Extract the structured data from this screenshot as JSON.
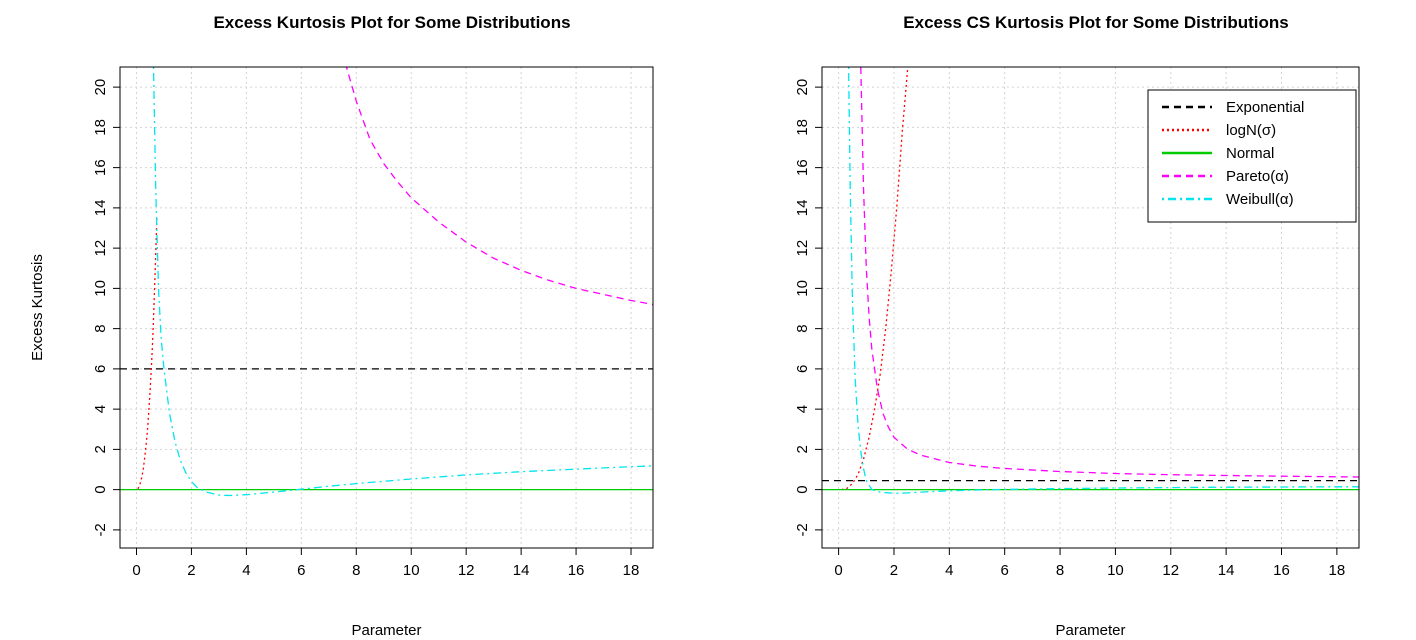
{
  "chart_data": [
    {
      "type": "line",
      "title": "Excess Kurtosis Plot for Some Distributions",
      "xlabel": "Parameter",
      "ylabel": "Excess Kurtosis",
      "xlim": [
        -0.6,
        18.8
      ],
      "ylim": [
        -2.9,
        21.0
      ],
      "xticks": [
        0,
        2,
        4,
        6,
        8,
        10,
        12,
        14,
        16,
        18
      ],
      "yticks": [
        -2,
        0,
        2,
        4,
        6,
        8,
        10,
        12,
        14,
        16,
        18,
        20
      ],
      "grid": true,
      "series": [
        {
          "name": "Exponential",
          "color": "#000000",
          "dash": "dashed",
          "x": [
            -0.6,
            18.8
          ],
          "y": [
            6,
            6
          ]
        },
        {
          "name": "logN(σ)",
          "color": "#ff0000",
          "dash": "dotted",
          "x": [
            0.05,
            0.1,
            0.15,
            0.2,
            0.25,
            0.3,
            0.35,
            0.4,
            0.45,
            0.5,
            0.55,
            0.6,
            0.65,
            0.7,
            0.72,
            0.74
          ],
          "y": [
            0.04,
            0.16,
            0.37,
            0.67,
            1.07,
            1.58,
            2.21,
            2.98,
            3.89,
            5.0,
            6.28,
            7.8,
            9.6,
            11.65,
            12.6,
            13.6
          ]
        },
        {
          "name": "Normal",
          "color": "#00cc00",
          "dash": "solid",
          "x": [
            -0.6,
            18.8
          ],
          "y": [
            0,
            0
          ]
        },
        {
          "name": "Pareto(α)",
          "color": "#ff00ff",
          "dash": "dashed",
          "x": [
            7.6,
            8.0,
            8.5,
            9.0,
            9.5,
            10.0,
            11.0,
            12.0,
            13.0,
            14.0,
            15.0,
            16.0,
            17.0,
            18.0,
            18.8
          ],
          "y": [
            21.2,
            19.3,
            17.4,
            16.2,
            15.3,
            14.5,
            13.3,
            12.3,
            11.5,
            10.9,
            10.4,
            10.0,
            9.7,
            9.4,
            9.2
          ]
        },
        {
          "name": "Weibull(α)",
          "color": "#00e5ee",
          "dash": "dotdash",
          "x": [
            0.62,
            0.7,
            0.8,
            0.9,
            1.0,
            1.2,
            1.4,
            1.6,
            1.8,
            2.0,
            2.2,
            2.5,
            3.0,
            3.4,
            4.0,
            5.0,
            6.0,
            7.0,
            8.0,
            10.0,
            12.0,
            14.0,
            16.0,
            18.0,
            18.8
          ],
          "y": [
            21.0,
            15.0,
            10.0,
            7.5,
            6.0,
            3.8,
            2.4,
            1.45,
            0.83,
            0.41,
            0.12,
            -0.11,
            -0.27,
            -0.29,
            -0.25,
            -0.12,
            0.02,
            0.17,
            0.3,
            0.53,
            0.73,
            0.89,
            1.02,
            1.14,
            1.18
          ]
        }
      ]
    },
    {
      "type": "line",
      "title": "Excess CS Kurtosis Plot for Some Distributions",
      "xlabel": "Parameter",
      "ylabel": "",
      "xlim": [
        -0.6,
        18.8
      ],
      "ylim": [
        -2.9,
        21.0
      ],
      "xticks": [
        0,
        2,
        4,
        6,
        8,
        10,
        12,
        14,
        16,
        18
      ],
      "yticks": [
        -2,
        0,
        2,
        4,
        6,
        8,
        10,
        12,
        14,
        16,
        18,
        20
      ],
      "grid": true,
      "legend_position": "top-right",
      "series": [
        {
          "name": "Exponential",
          "color": "#000000",
          "dash": "dashed",
          "x": [
            -0.6,
            18.8
          ],
          "y": [
            0.45,
            0.45
          ]
        },
        {
          "name": "logN(σ)",
          "color": "#ff0000",
          "dash": "dotted",
          "x": [
            0.1,
            0.3,
            0.5,
            0.7,
            0.9,
            1.1,
            1.3,
            1.5,
            1.7,
            1.9,
            2.1,
            2.3,
            2.5
          ],
          "y": [
            0.0,
            0.06,
            0.3,
            0.75,
            1.5,
            2.6,
            4.0,
            5.7,
            8.0,
            10.8,
            14.0,
            17.8,
            21.0
          ]
        },
        {
          "name": "Normal",
          "color": "#00cc00",
          "dash": "solid",
          "x": [
            -0.6,
            18.8
          ],
          "y": [
            0,
            0
          ]
        },
        {
          "name": "Pareto(α)",
          "color": "#ff00ff",
          "dash": "dashed",
          "x": [
            0.8,
            0.9,
            1.0,
            1.1,
            1.2,
            1.4,
            1.6,
            1.8,
            2.0,
            2.5,
            3.0,
            4.0,
            5.0,
            6.0,
            8.0,
            10.0,
            12.0,
            14.0,
            16.0,
            18.0,
            18.8
          ],
          "y": [
            21.0,
            15.0,
            11.0,
            8.6,
            7.0,
            5.0,
            3.8,
            3.1,
            2.6,
            2.0,
            1.7,
            1.35,
            1.17,
            1.05,
            0.9,
            0.8,
            0.74,
            0.7,
            0.67,
            0.64,
            0.63
          ]
        },
        {
          "name": "Weibull(α)",
          "color": "#00e5ee",
          "dash": "dotdash",
          "x": [
            0.36,
            0.42,
            0.5,
            0.6,
            0.7,
            0.8,
            0.9,
            1.0,
            1.2,
            1.5,
            2.0,
            2.5,
            3.0,
            4.0,
            5.0,
            6.0,
            8.0,
            10.0,
            12.0,
            14.0,
            16.0,
            18.0,
            18.8
          ],
          "y": [
            21.0,
            15.0,
            9.5,
            5.5,
            3.2,
            1.9,
            1.05,
            0.45,
            0.0,
            -0.12,
            -0.18,
            -0.16,
            -0.12,
            -0.06,
            -0.02,
            0.01,
            0.05,
            0.08,
            0.1,
            0.12,
            0.13,
            0.14,
            0.14
          ]
        }
      ]
    }
  ]
}
